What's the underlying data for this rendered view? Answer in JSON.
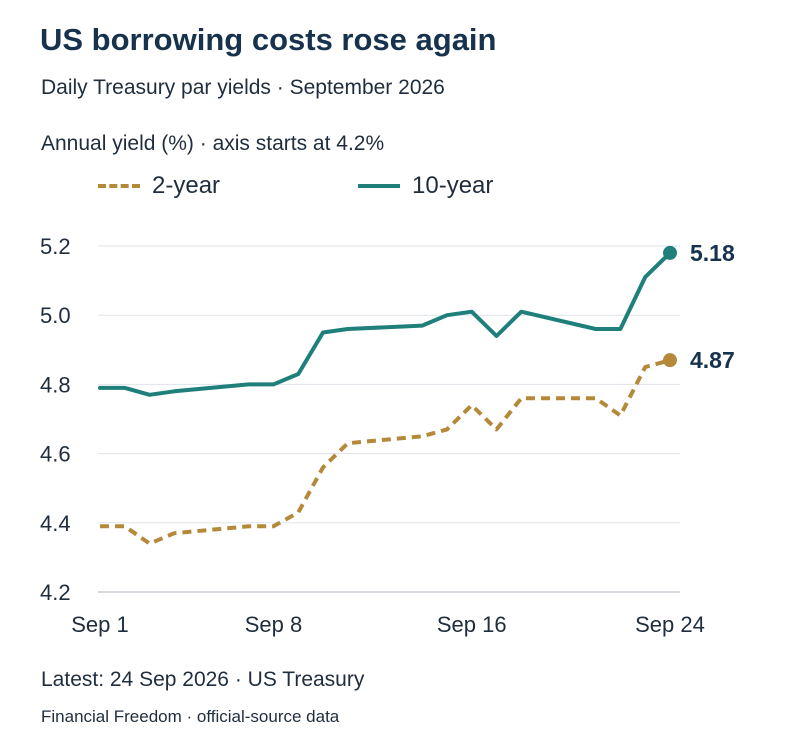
{
  "header": {
    "title": "US borrowing costs rose again",
    "subtitle": "Daily Treasury par yields · September 2026",
    "axis_note": "Annual yield (%) · axis starts at 4.2%"
  },
  "footer": {
    "latest": "Latest: 24 Sep 2026 · US Treasury",
    "credit": "Financial Freedom · official-source data"
  },
  "colors": {
    "two_year": "#b5893a",
    "ten_year": "#1f7f7b",
    "grid": "#dfe3e8",
    "text": "#1f2d3d"
  },
  "chart_data": {
    "type": "line",
    "ylim": [
      4.2,
      5.2
    ],
    "yticks": [
      "4.2",
      "4.4",
      "4.6",
      "4.8",
      "5.0",
      "5.2"
    ],
    "xlim": [
      "2026-09-01",
      "2026-09-24"
    ],
    "xticks": [
      {
        "date": "2026-09-01",
        "label": "Sep 1"
      },
      {
        "date": "2026-09-08",
        "label": "Sep 8"
      },
      {
        "date": "2026-09-16",
        "label": "Sep 16"
      },
      {
        "date": "2026-09-24",
        "label": "Sep 24"
      }
    ],
    "grid": true,
    "legend_position": "top",
    "series": [
      {
        "name": "2-year",
        "style": "dashed",
        "end_label": "4.87",
        "points": [
          [
            "2026-09-01",
            4.39
          ],
          [
            "2026-09-02",
            4.39
          ],
          [
            "2026-09-03",
            4.34
          ],
          [
            "2026-09-04",
            4.37
          ],
          [
            "2026-09-07",
            4.39
          ],
          [
            "2026-09-08",
            4.39
          ],
          [
            "2026-09-09",
            4.43
          ],
          [
            "2026-09-10",
            4.56
          ],
          [
            "2026-09-11",
            4.63
          ],
          [
            "2026-09-14",
            4.65
          ],
          [
            "2026-09-15",
            4.67
          ],
          [
            "2026-09-16",
            4.74
          ],
          [
            "2026-09-17",
            4.67
          ],
          [
            "2026-09-18",
            4.76
          ],
          [
            "2026-09-21",
            4.76
          ],
          [
            "2026-09-22",
            4.71
          ],
          [
            "2026-09-23",
            4.85
          ],
          [
            "2026-09-24",
            4.87
          ]
        ]
      },
      {
        "name": "10-year",
        "style": "solid",
        "end_label": "5.18",
        "points": [
          [
            "2026-09-01",
            4.79
          ],
          [
            "2026-09-02",
            4.79
          ],
          [
            "2026-09-03",
            4.77
          ],
          [
            "2026-09-04",
            4.78
          ],
          [
            "2026-09-07",
            4.8
          ],
          [
            "2026-09-08",
            4.8
          ],
          [
            "2026-09-09",
            4.83
          ],
          [
            "2026-09-10",
            4.95
          ],
          [
            "2026-09-11",
            4.96
          ],
          [
            "2026-09-14",
            4.97
          ],
          [
            "2026-09-15",
            5.0
          ],
          [
            "2026-09-16",
            5.01
          ],
          [
            "2026-09-17",
            4.94
          ],
          [
            "2026-09-18",
            5.01
          ],
          [
            "2026-09-21",
            4.96
          ],
          [
            "2026-09-22",
            4.96
          ],
          [
            "2026-09-23",
            5.11
          ],
          [
            "2026-09-24",
            5.18
          ]
        ]
      }
    ]
  }
}
